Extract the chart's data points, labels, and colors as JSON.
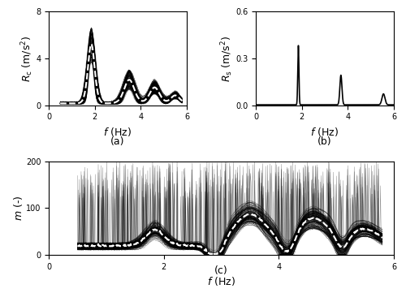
{
  "fig_width": 5.0,
  "fig_height": 3.61,
  "dpi": 100,
  "subplot_a": {
    "xlabel": "f  (Hz)",
    "ylabel": "R_c  (m/s^2)",
    "xlim": [
      0,
      6
    ],
    "ylim": [
      0,
      8
    ],
    "yticks": [
      0,
      4,
      8
    ],
    "xticks": [
      0,
      2,
      4,
      6
    ],
    "label": "(a)"
  },
  "subplot_b": {
    "xlabel": "f  (Hz)",
    "ylabel": "R_s  (m/s^2)",
    "xlim": [
      0,
      6
    ],
    "ylim": [
      0,
      0.6
    ],
    "yticks": [
      0,
      0.3,
      0.6
    ],
    "xticks": [
      0,
      2,
      4,
      6
    ],
    "label": "(b)"
  },
  "subplot_c": {
    "xlabel": "f  (Hz)",
    "ylabel": "m  (-)",
    "xlim": [
      0,
      6
    ],
    "ylim": [
      0,
      200
    ],
    "yticks": [
      0,
      100,
      200
    ],
    "xticks": [
      0,
      2,
      4,
      6
    ],
    "label": "(c)"
  },
  "scatter_color": "#000000",
  "scatter_size": 1.0,
  "mean_color": "#ffffff",
  "mean_lw": 1.5,
  "mean_ls": "--",
  "line_color": "#000000",
  "line_lw": 1.2,
  "n_runs": 150,
  "f_start": 0.5,
  "f_end": 5.8,
  "n_pts_per_run": 500,
  "peak1_freq": 1.85,
  "peak2_freq": 3.5,
  "peak3_freq": 4.6,
  "peak4_freq": 5.5,
  "tick_fontsize": 7,
  "label_fontsize": 9,
  "caption_fontsize": 9
}
